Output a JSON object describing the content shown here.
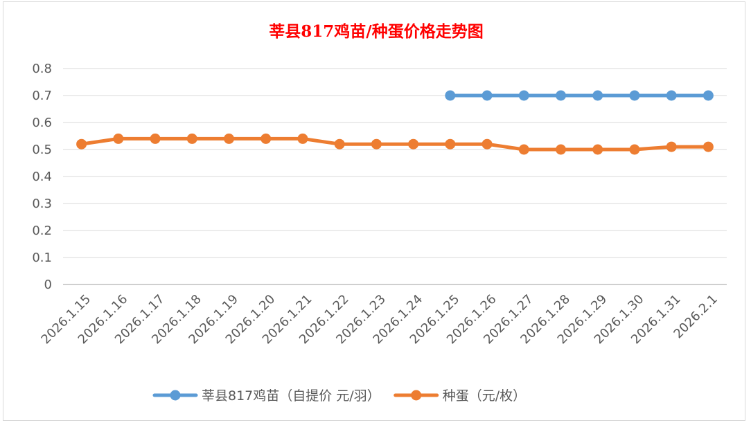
{
  "chart_data": {
    "type": "line",
    "title": "莘县817鸡苗/种蛋价格走势图",
    "xlabel": "",
    "ylabel": "",
    "ylim": [
      0,
      0.8
    ],
    "yticks": [
      "0",
      "0.1",
      "0.2",
      "0.3",
      "0.4",
      "0.5",
      "0.6",
      "0.7",
      "0.8"
    ],
    "categories": [
      "2026.1.15",
      "2026.1.16",
      "2026.1.17",
      "2026.1.18",
      "2026.1.19",
      "2026.1.20",
      "2026.1.21",
      "2026.1.22",
      "2026.1.23",
      "2026.1.24",
      "2026.1.25",
      "2026.1.26",
      "2026.1.27",
      "2026.1.28",
      "2026.1.29",
      "2026.1.30",
      "2026.1.31",
      "2026.2.1"
    ],
    "series": [
      {
        "name": "莘县817鸡苗（自提价 元/羽）",
        "color": "#5b9bd5",
        "values": [
          null,
          null,
          null,
          null,
          null,
          null,
          null,
          null,
          null,
          null,
          0.7,
          0.7,
          0.7,
          0.7,
          0.7,
          0.7,
          0.7,
          0.7
        ]
      },
      {
        "name": "种蛋（元/枚）",
        "color": "#ed7d31",
        "values": [
          0.52,
          0.54,
          0.54,
          0.54,
          0.54,
          0.54,
          0.54,
          0.52,
          0.52,
          0.52,
          0.52,
          0.52,
          0.5,
          0.5,
          0.5,
          0.5,
          0.51,
          0.51
        ]
      }
    ],
    "grid": true,
    "legend_position": "bottom"
  }
}
